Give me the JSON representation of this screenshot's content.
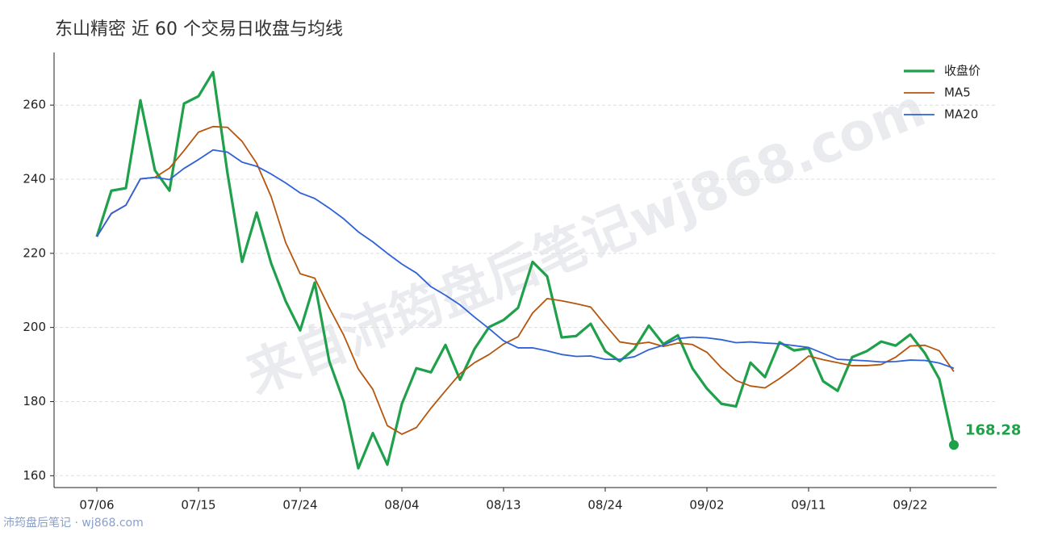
{
  "chart_data": {
    "type": "line",
    "title": "东山精密 近 60 个交易日收盘与均线",
    "watermark": "来自沛筠盘后笔记wj868.com",
    "footer": "沛筠盘后笔记 · wj868.com",
    "categories": [
      "07/06",
      null,
      null,
      null,
      null,
      null,
      null,
      "07/15",
      null,
      null,
      null,
      null,
      null,
      null,
      "07/24",
      null,
      null,
      null,
      null,
      null,
      null,
      "08/04",
      null,
      null,
      null,
      null,
      null,
      null,
      "08/13",
      null,
      null,
      null,
      null,
      null,
      null,
      "08/24",
      null,
      null,
      null,
      null,
      null,
      null,
      "09/02",
      null,
      null,
      null,
      null,
      null,
      null,
      "09/11",
      null,
      null,
      null,
      null,
      null,
      null,
      "09/22",
      null,
      null,
      null
    ],
    "series": [
      {
        "name": "收盘价",
        "color": "#1fa04a",
        "values": [
          224.5,
          236.9,
          237.6,
          261.3,
          242.4,
          236.9,
          260.4,
          262.4,
          268.9,
          241.5,
          217.7,
          231.0,
          217.3,
          207.1,
          199.2,
          212.1,
          190.9,
          180.0,
          162.0,
          171.5,
          163.0,
          179.4,
          189.0,
          187.9,
          195.3,
          185.9,
          194.2,
          200.1,
          202.0,
          205.3,
          217.7,
          213.8,
          197.3,
          197.7,
          201.0,
          193.6,
          190.9,
          194.2,
          200.5,
          195.5,
          197.9,
          189.0,
          183.5,
          179.4,
          178.7,
          190.5,
          186.6,
          196.0,
          193.8,
          194.4,
          185.5,
          182.9,
          192.0,
          193.6,
          196.2,
          195.1,
          198.1,
          193.1,
          186.1,
          168.28
        ]
      },
      {
        "name": "MA5",
        "color": "#b5560f",
        "values": [
          224.5,
          230.7,
          233.0,
          240.1,
          240.5,
          243.0,
          247.7,
          252.7,
          254.2,
          254.0,
          250.2,
          244.3,
          235.3,
          222.9,
          214.5,
          213.3,
          205.3,
          197.9,
          188.8,
          183.3,
          173.5,
          171.2,
          173.0,
          178.2,
          182.9,
          187.5,
          190.5,
          192.7,
          195.5,
          197.5,
          203.9,
          207.8,
          207.2,
          206.4,
          205.5,
          200.7,
          196.1,
          195.5,
          196.0,
          194.9,
          195.8,
          195.4,
          193.3,
          189.1,
          185.7,
          184.2,
          183.7,
          186.2,
          189.1,
          192.3,
          191.3,
          190.5,
          189.7,
          189.7,
          190.0,
          192.0,
          195.0,
          195.2,
          193.7,
          188.1
        ]
      },
      {
        "name": "MA20",
        "color": "#2f62d8",
        "values": [
          224.5,
          230.8,
          233.0,
          240.1,
          240.5,
          239.9,
          242.9,
          245.3,
          247.9,
          247.3,
          244.6,
          243.5,
          241.4,
          239.0,
          236.3,
          234.8,
          232.2,
          229.3,
          225.8,
          223.1,
          220.0,
          217.1,
          214.7,
          211.0,
          208.7,
          206.1,
          202.8,
          199.7,
          196.4,
          194.5,
          194.5,
          193.7,
          192.7,
          192.2,
          192.3,
          191.4,
          191.4,
          192.1,
          194.0,
          195.2,
          197.0,
          197.4,
          197.2,
          196.7,
          195.9,
          196.1,
          195.8,
          195.6,
          195.1,
          194.6,
          193.0,
          191.4,
          191.2,
          191.0,
          190.7,
          190.8,
          191.2,
          191.1,
          190.4,
          189.0
        ]
      }
    ],
    "ylim": [
      156.8,
      274.2
    ],
    "yticks": [
      160,
      180,
      200,
      220,
      240,
      260
    ],
    "grid": true,
    "legend": "upper right"
  }
}
